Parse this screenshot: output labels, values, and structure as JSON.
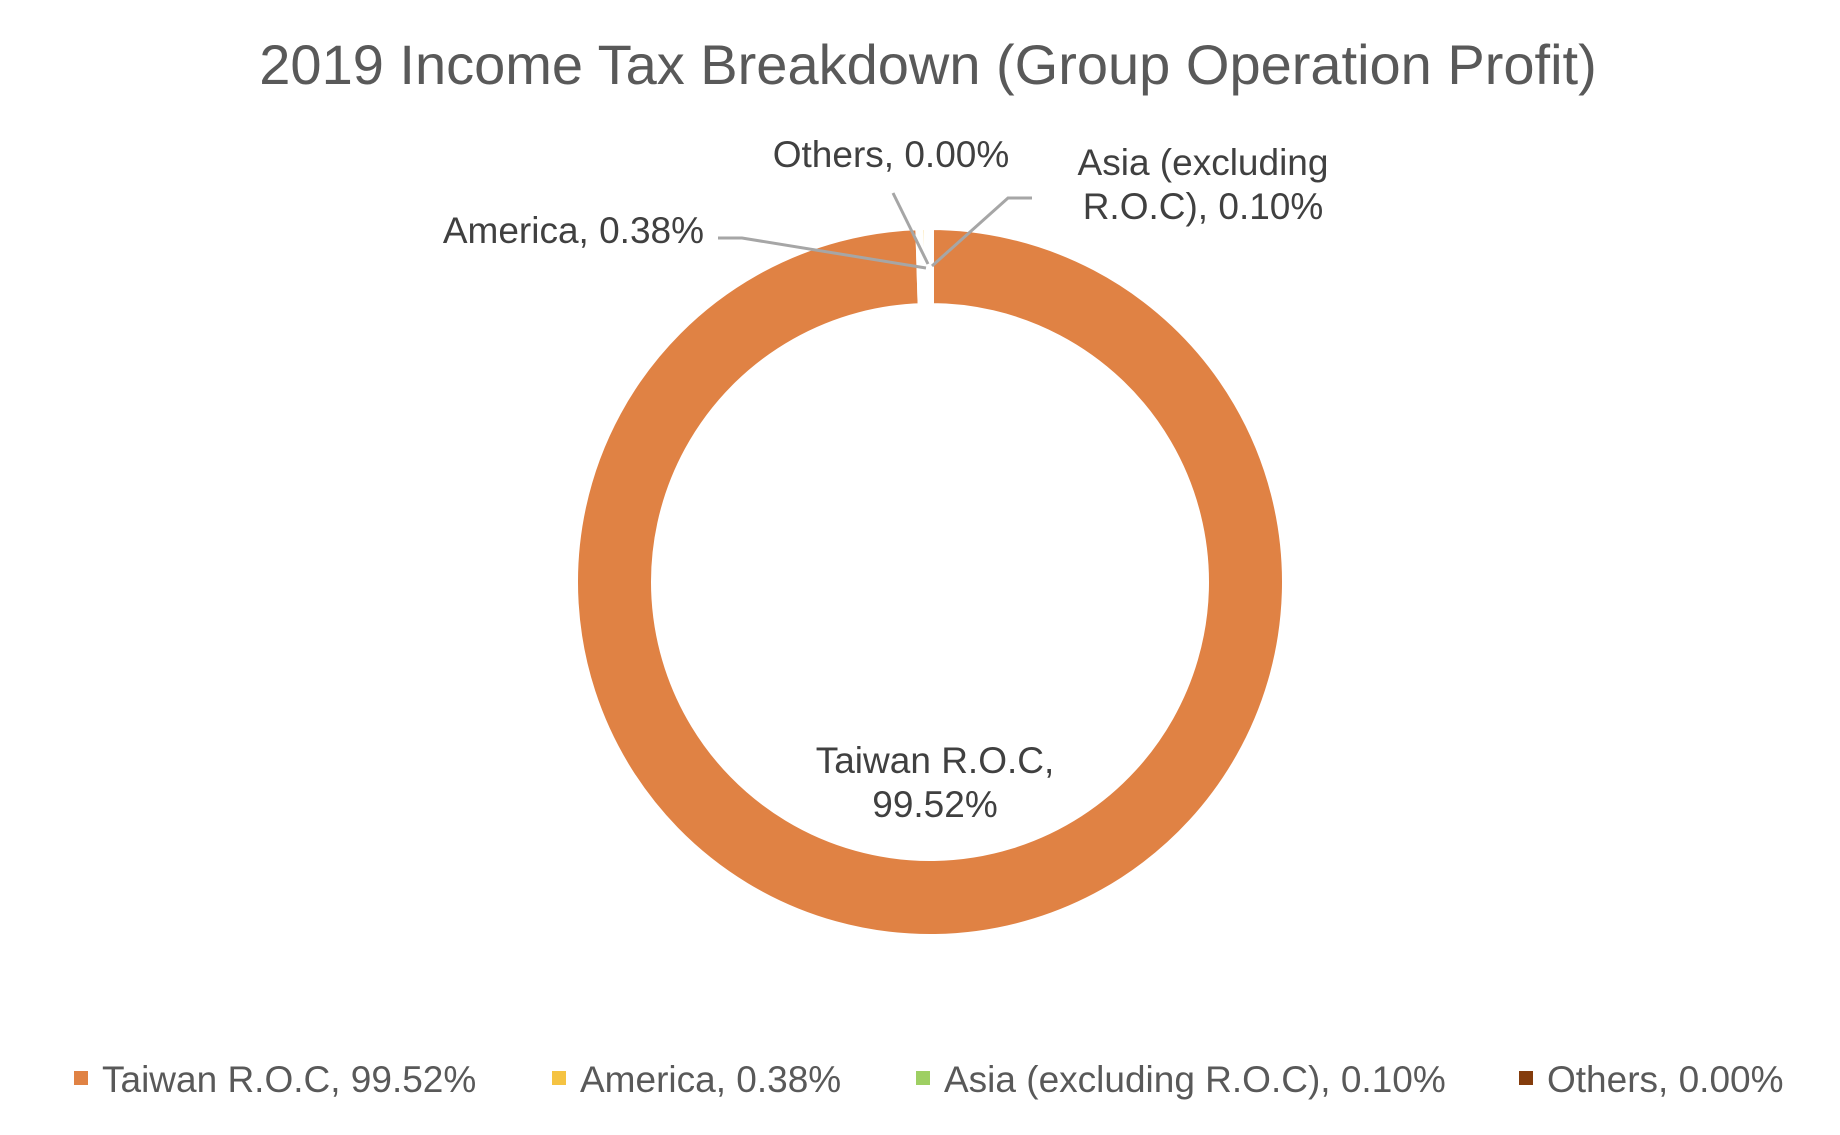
{
  "chart_data": {
    "type": "pie",
    "variant": "doughnut",
    "title": "2019 Income Tax Breakdown (Group Operation Profit)",
    "categories": [
      "Taiwan R.O.C",
      "America",
      "Asia (excluding R.O.C)",
      "Others"
    ],
    "values": [
      99.52,
      0.38,
      0.1,
      0.0
    ],
    "unit": "%",
    "colors": [
      "#E08244",
      "#F5C342",
      "#9ECF63",
      "#843C0C"
    ],
    "separator_color": "#ffffff",
    "data_labels": [
      {
        "lines": [
          "Taiwan R.O.C,",
          "99.52%"
        ]
      },
      {
        "lines": [
          "America, 0.38%"
        ]
      },
      {
        "lines": [
          "Asia (excluding",
          "R.O.C), 0.10%"
        ]
      },
      {
        "lines": [
          "Others, 0.00%"
        ]
      }
    ],
    "legend": {
      "position": "bottom",
      "entries": [
        "Taiwan R.O.C, 99.52%",
        "America, 0.38%",
        "Asia (excluding R.O.C), 0.10%",
        "Others, 0.00%"
      ]
    }
  }
}
